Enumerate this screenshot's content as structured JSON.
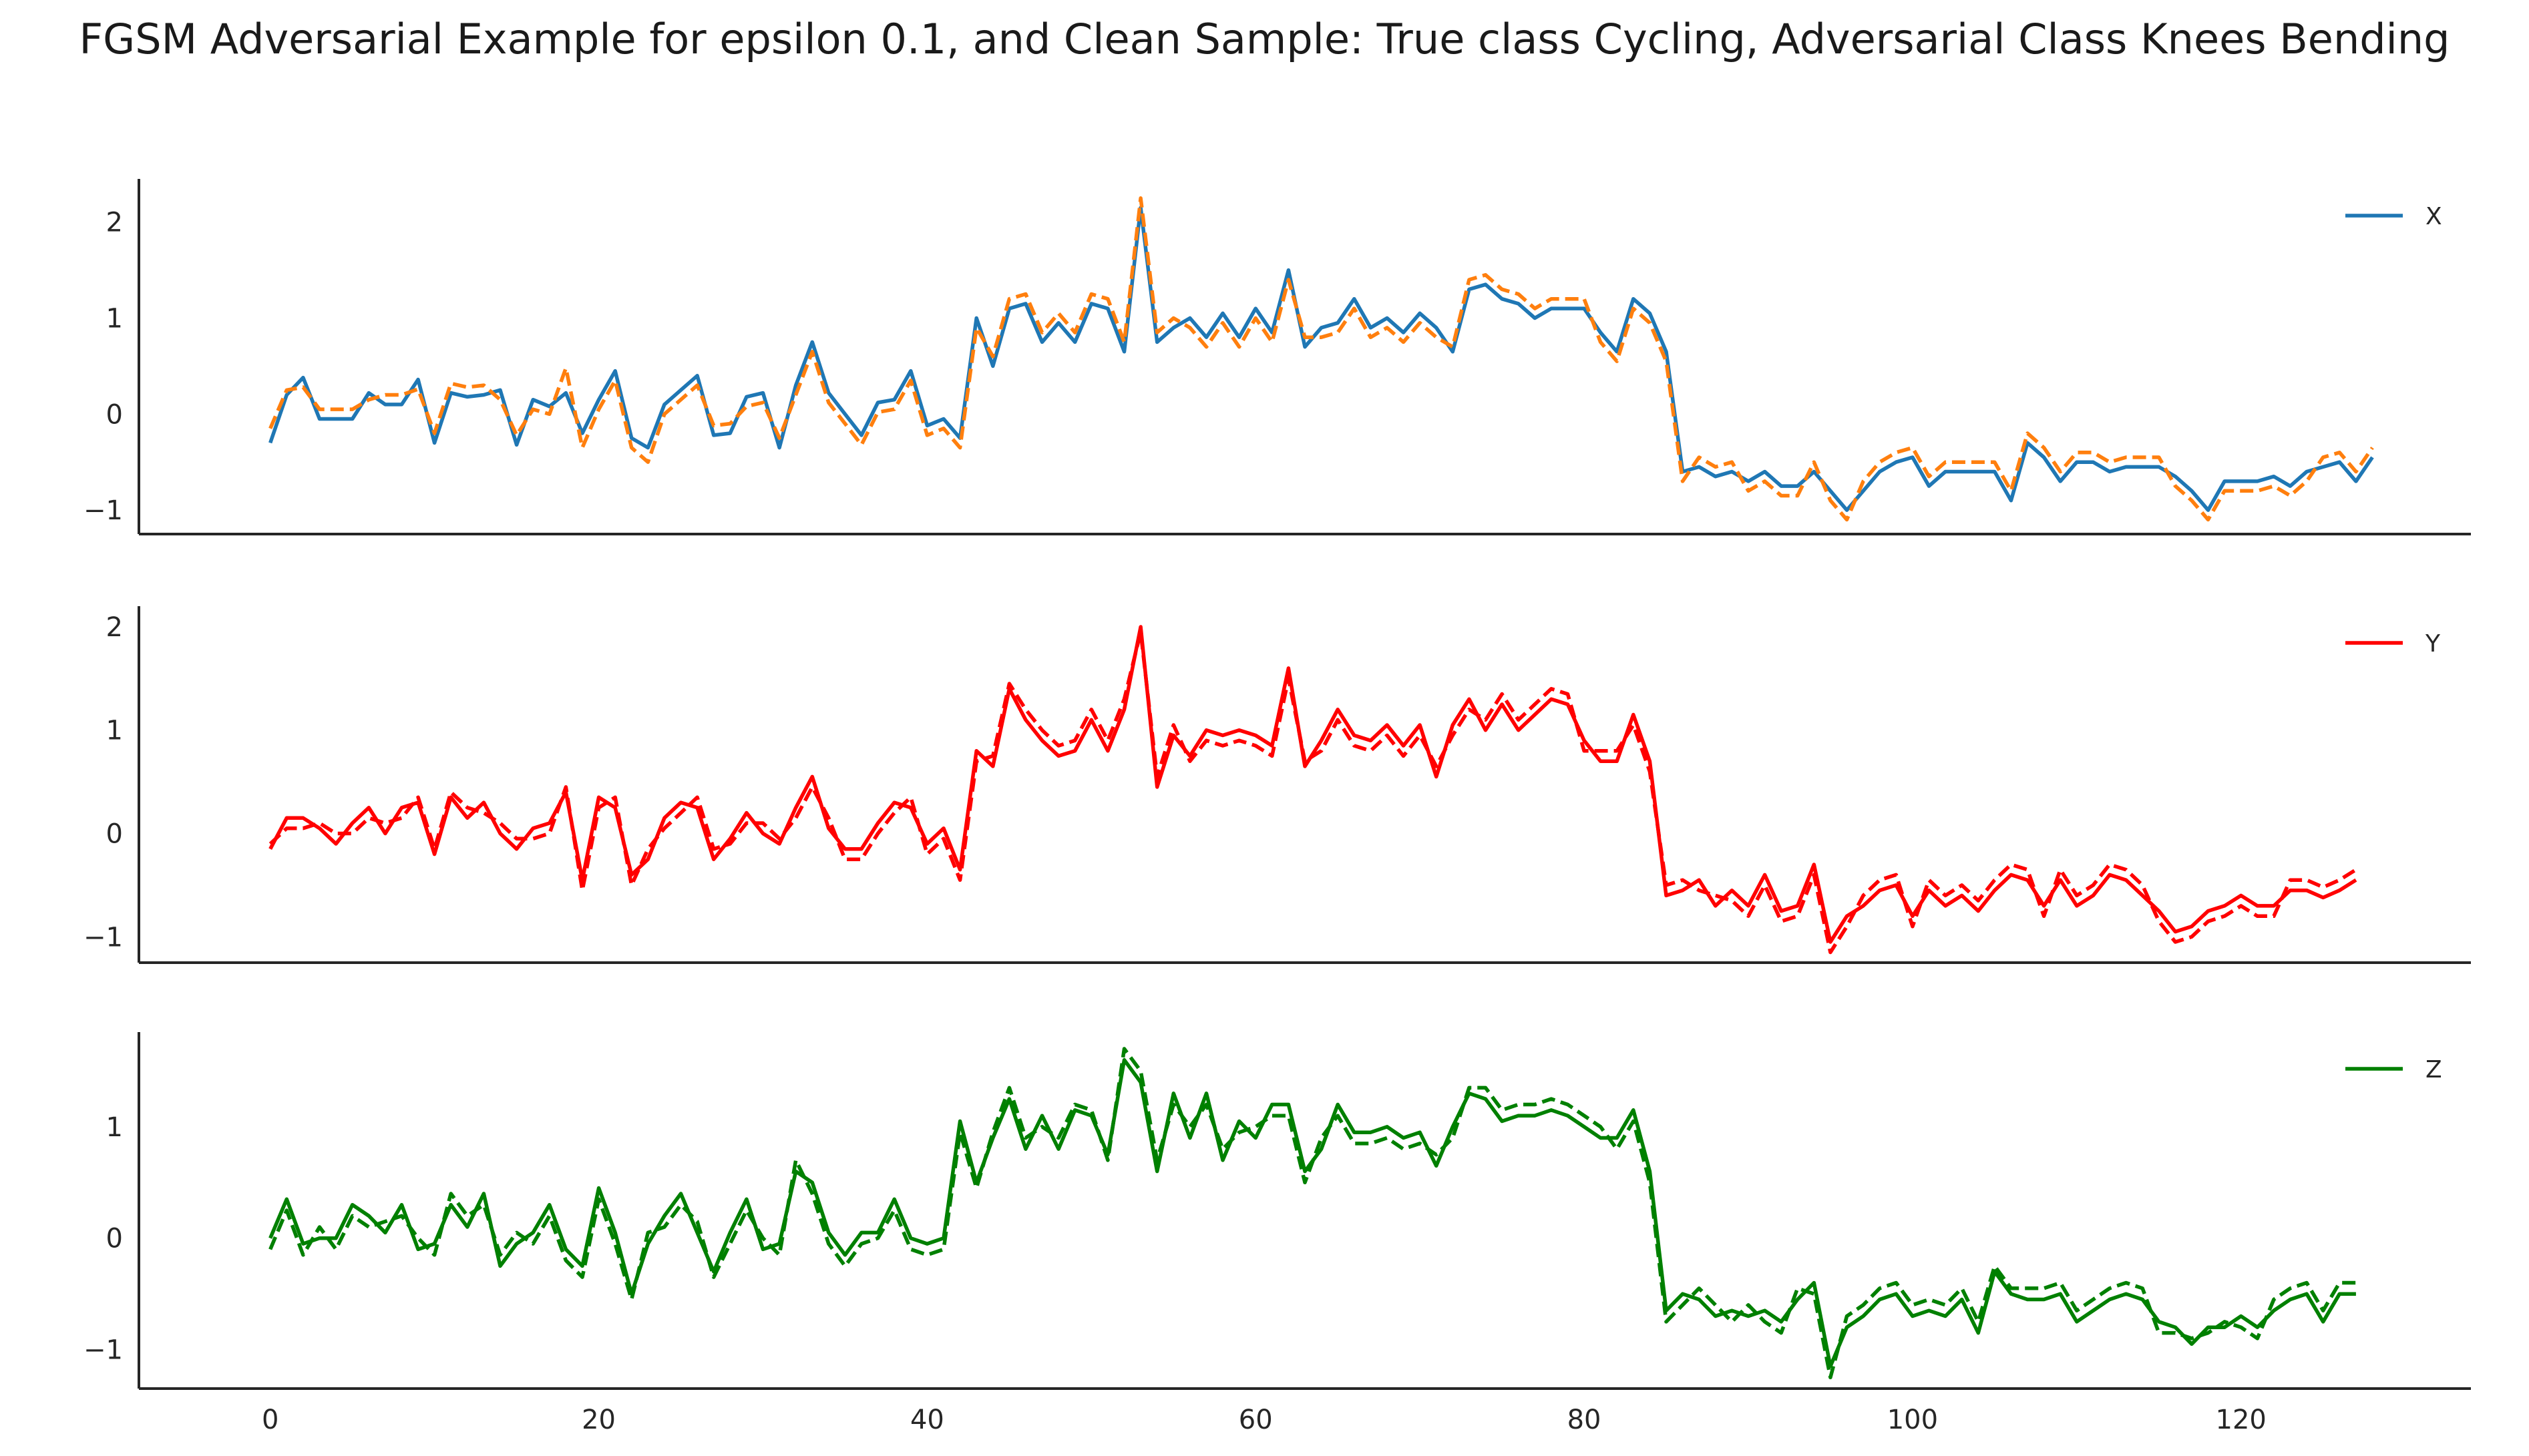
{
  "title": "FGSM Adversarial Example for epsilon 0.1, and Clean Sample: True class Cycling, Adversarial Class Knees Bending",
  "chart_data": [
    {
      "type": "line",
      "legend_location": "top-right",
      "grid": false,
      "x_range": [
        -8,
        134
      ],
      "x_ticks": [
        0,
        20,
        40,
        60,
        80,
        100,
        120
      ],
      "x_tick_labels_shown": false,
      "y_range": [
        -1.25,
        2.45
      ],
      "y_ticks": [
        -1,
        0,
        1,
        2
      ],
      "y_tick_labels": [
        "−1",
        "0",
        "1",
        "2"
      ],
      "series": [
        {
          "name": "X",
          "style": "solid",
          "color": "#1f77b4",
          "values": [
            -0.3,
            0.2,
            0.38,
            -0.05,
            -0.05,
            -0.05,
            0.22,
            0.1,
            0.1,
            0.36,
            -0.3,
            0.22,
            0.18,
            0.2,
            0.25,
            -0.32,
            0.15,
            0.08,
            0.22,
            -0.2,
            0.15,
            0.45,
            -0.25,
            -0.35,
            0.1,
            0.25,
            0.4,
            -0.22,
            -0.2,
            0.18,
            0.22,
            -0.35,
            0.3,
            0.75,
            0.22,
            0.0,
            -0.22,
            0.12,
            0.15,
            0.45,
            -0.12,
            -0.05,
            -0.25,
            1.0,
            0.5,
            1.1,
            1.15,
            0.75,
            0.95,
            0.75,
            1.15,
            1.1,
            0.65,
            2.15,
            0.75,
            0.9,
            1.0,
            0.8,
            1.05,
            0.8,
            1.1,
            0.85,
            1.5,
            0.7,
            0.9,
            0.95,
            1.2,
            0.9,
            1.0,
            0.85,
            1.05,
            0.9,
            0.65,
            1.3,
            1.35,
            1.2,
            1.15,
            1.0,
            1.1,
            1.1,
            1.1,
            0.85,
            0.65,
            1.2,
            1.05,
            0.65,
            -0.6,
            -0.55,
            -0.65,
            -0.6,
            -0.7,
            -0.6,
            -0.75,
            -0.75,
            -0.6,
            -0.8,
            -1.0,
            -0.8,
            -0.6,
            -0.5,
            -0.45,
            -0.75,
            -0.6,
            -0.6,
            -0.6,
            -0.6,
            -0.9,
            -0.3,
            -0.45,
            -0.7,
            -0.5,
            -0.5,
            -0.6,
            -0.55,
            -0.55,
            -0.55,
            -0.65,
            -0.8,
            -1.0,
            -0.7,
            -0.7,
            -0.7,
            -0.65,
            -0.75,
            -0.6,
            -0.55,
            -0.5,
            -0.7,
            -0.45
          ]
        },
        {
          "name": "",
          "style": "dashed",
          "color": "#ff7f0e",
          "values": [
            -0.15,
            0.25,
            0.28,
            0.05,
            0.05,
            0.05,
            0.15,
            0.2,
            0.2,
            0.26,
            -0.2,
            0.32,
            0.28,
            0.3,
            0.15,
            -0.22,
            0.05,
            0.0,
            0.48,
            -0.35,
            0.05,
            0.35,
            -0.35,
            -0.5,
            0.0,
            0.15,
            0.3,
            -0.12,
            -0.1,
            0.08,
            0.12,
            -0.25,
            0.2,
            0.65,
            0.12,
            -0.1,
            -0.32,
            0.02,
            0.05,
            0.35,
            -0.22,
            -0.15,
            -0.35,
            0.9,
            0.6,
            1.2,
            1.25,
            0.85,
            1.05,
            0.85,
            1.25,
            1.2,
            0.75,
            2.25,
            0.85,
            1.0,
            0.9,
            0.7,
            0.95,
            0.7,
            1.0,
            0.75,
            1.4,
            0.8,
            0.8,
            0.85,
            1.1,
            0.8,
            0.9,
            0.75,
            0.95,
            0.8,
            0.7,
            1.4,
            1.45,
            1.3,
            1.25,
            1.1,
            1.2,
            1.2,
            1.2,
            0.75,
            0.55,
            1.1,
            0.95,
            0.55,
            -0.7,
            -0.45,
            -0.55,
            -0.5,
            -0.8,
            -0.7,
            -0.85,
            -0.85,
            -0.5,
            -0.9,
            -1.1,
            -0.7,
            -0.5,
            -0.4,
            -0.35,
            -0.65,
            -0.5,
            -0.5,
            -0.5,
            -0.5,
            -0.8,
            -0.2,
            -0.35,
            -0.6,
            -0.4,
            -0.4,
            -0.5,
            -0.45,
            -0.45,
            -0.45,
            -0.75,
            -0.9,
            -1.1,
            -0.8,
            -0.8,
            -0.8,
            -0.75,
            -0.85,
            -0.7,
            -0.45,
            -0.4,
            -0.6,
            -0.35
          ]
        }
      ]
    },
    {
      "type": "line",
      "legend_location": "top-right",
      "grid": false,
      "x_range": [
        -8,
        134
      ],
      "x_ticks": [
        0,
        20,
        40,
        60,
        80,
        100,
        120
      ],
      "x_tick_labels_shown": false,
      "y_range": [
        -1.25,
        2.2
      ],
      "y_ticks": [
        -1,
        0,
        1,
        2
      ],
      "y_tick_labels": [
        "−1",
        "0",
        "1",
        "2"
      ],
      "series": [
        {
          "name": "Y",
          "style": "solid",
          "color": "#ff0000",
          "values": [
            -0.15,
            0.15,
            0.15,
            0.05,
            -0.1,
            0.1,
            0.25,
            0.0,
            0.25,
            0.3,
            -0.2,
            0.35,
            0.15,
            0.3,
            0.0,
            -0.15,
            0.05,
            0.1,
            0.4,
            -0.45,
            0.35,
            0.25,
            -0.4,
            -0.25,
            0.15,
            0.3,
            0.25,
            -0.25,
            -0.05,
            0.2,
            0.0,
            -0.1,
            0.25,
            0.55,
            0.05,
            -0.15,
            -0.15,
            0.1,
            0.3,
            0.25,
            -0.1,
            0.05,
            -0.35,
            0.8,
            0.65,
            1.4,
            1.1,
            0.9,
            0.75,
            0.8,
            1.1,
            0.8,
            1.2,
            2.0,
            0.45,
            0.95,
            0.75,
            1.0,
            0.95,
            1.0,
            0.95,
            0.85,
            1.6,
            0.65,
            0.9,
            1.2,
            0.95,
            0.9,
            1.05,
            0.85,
            1.05,
            0.55,
            1.05,
            1.3,
            1.0,
            1.25,
            1.0,
            1.15,
            1.3,
            1.25,
            0.9,
            0.7,
            0.7,
            1.15,
            0.7,
            -0.6,
            -0.55,
            -0.45,
            -0.7,
            -0.55,
            -0.7,
            -0.4,
            -0.75,
            -0.7,
            -0.3,
            -1.05,
            -0.8,
            -0.7,
            -0.55,
            -0.5,
            -0.8,
            -0.55,
            -0.7,
            -0.6,
            -0.75,
            -0.55,
            -0.4,
            -0.45,
            -0.7,
            -0.45,
            -0.7,
            -0.6,
            -0.4,
            -0.45,
            -0.6,
            -0.75,
            -0.95,
            -0.9,
            -0.75,
            -0.7,
            -0.6,
            -0.7,
            -0.7,
            -0.55,
            -0.55,
            -0.62,
            -0.55,
            -0.45
          ]
        },
        {
          "name": "",
          "style": "dashed",
          "color": "#ff0000",
          "values": [
            -0.1,
            0.05,
            0.05,
            0.1,
            0.0,
            0.0,
            0.15,
            0.1,
            0.15,
            0.35,
            -0.15,
            0.4,
            0.25,
            0.2,
            0.1,
            -0.05,
            -0.05,
            0.0,
            0.45,
            -0.55,
            0.25,
            0.35,
            -0.5,
            -0.15,
            0.05,
            0.2,
            0.35,
            -0.15,
            -0.1,
            0.1,
            0.1,
            -0.05,
            0.15,
            0.45,
            0.15,
            -0.25,
            -0.25,
            0.0,
            0.2,
            0.35,
            -0.2,
            -0.05,
            -0.45,
            0.7,
            0.75,
            1.45,
            1.2,
            1.0,
            0.85,
            0.9,
            1.2,
            0.9,
            1.3,
            1.95,
            0.55,
            1.05,
            0.7,
            0.9,
            0.85,
            0.9,
            0.85,
            0.75,
            1.5,
            0.7,
            0.8,
            1.1,
            0.85,
            0.8,
            0.95,
            0.75,
            0.95,
            0.65,
            0.95,
            1.2,
            1.1,
            1.35,
            1.1,
            1.25,
            1.4,
            1.35,
            0.8,
            0.8,
            0.8,
            1.05,
            0.6,
            -0.5,
            -0.45,
            -0.55,
            -0.6,
            -0.65,
            -0.8,
            -0.5,
            -0.85,
            -0.8,
            -0.4,
            -1.15,
            -0.9,
            -0.6,
            -0.45,
            -0.4,
            -0.9,
            -0.45,
            -0.6,
            -0.5,
            -0.65,
            -0.45,
            -0.3,
            -0.35,
            -0.8,
            -0.35,
            -0.6,
            -0.5,
            -0.3,
            -0.35,
            -0.5,
            -0.85,
            -1.05,
            -1.0,
            -0.85,
            -0.8,
            -0.7,
            -0.8,
            -0.8,
            -0.45,
            -0.45,
            -0.52,
            -0.45,
            -0.35
          ]
        }
      ]
    },
    {
      "type": "line",
      "legend_location": "top-right",
      "grid": false,
      "x_range": [
        -8,
        134
      ],
      "x_ticks": [
        0,
        20,
        40,
        60,
        80,
        100,
        120
      ],
      "x_tick_labels": [
        "0",
        "20",
        "40",
        "60",
        "80",
        "100",
        "120"
      ],
      "y_range": [
        -1.35,
        1.85
      ],
      "y_ticks": [
        -1,
        0,
        1
      ],
      "y_tick_labels": [
        "−1",
        "0",
        "1"
      ],
      "series": [
        {
          "name": "Z",
          "style": "solid",
          "color": "#008000",
          "values": [
            0.0,
            0.35,
            -0.05,
            0.0,
            0.0,
            0.3,
            0.2,
            0.05,
            0.3,
            -0.1,
            -0.05,
            0.3,
            0.1,
            0.4,
            -0.25,
            -0.05,
            0.05,
            0.3,
            -0.1,
            -0.25,
            0.45,
            0.05,
            -0.5,
            -0.05,
            0.2,
            0.4,
            0.05,
            -0.3,
            0.05,
            0.35,
            -0.1,
            -0.05,
            0.6,
            0.5,
            0.05,
            -0.15,
            0.05,
            0.05,
            0.35,
            0.0,
            -0.05,
            0.0,
            1.05,
            0.5,
            0.9,
            1.25,
            0.8,
            1.1,
            0.8,
            1.15,
            1.1,
            0.75,
            1.6,
            1.4,
            0.6,
            1.3,
            0.9,
            1.3,
            0.7,
            1.05,
            0.9,
            1.2,
            1.2,
            0.6,
            0.8,
            1.2,
            0.95,
            0.95,
            1.0,
            0.9,
            0.95,
            0.65,
            1.0,
            1.3,
            1.25,
            1.05,
            1.1,
            1.1,
            1.15,
            1.1,
            1.0,
            0.9,
            0.9,
            1.15,
            0.6,
            -0.65,
            -0.5,
            -0.55,
            -0.7,
            -0.65,
            -0.7,
            -0.65,
            -0.75,
            -0.55,
            -0.4,
            -1.15,
            -0.8,
            -0.7,
            -0.55,
            -0.5,
            -0.7,
            -0.65,
            -0.7,
            -0.55,
            -0.85,
            -0.3,
            -0.5,
            -0.55,
            -0.55,
            -0.5,
            -0.75,
            -0.65,
            -0.55,
            -0.5,
            -0.55,
            -0.75,
            -0.8,
            -0.95,
            -0.8,
            -0.8,
            -0.7,
            -0.8,
            -0.65,
            -0.55,
            -0.5,
            -0.75,
            -0.5,
            -0.5
          ]
        },
        {
          "name": "",
          "style": "dashed",
          "color": "#008000",
          "values": [
            -0.1,
            0.25,
            -0.15,
            0.1,
            -0.1,
            0.2,
            0.1,
            0.15,
            0.2,
            0.0,
            -0.15,
            0.4,
            0.2,
            0.3,
            -0.15,
            0.05,
            -0.05,
            0.2,
            -0.2,
            -0.35,
            0.35,
            -0.05,
            -0.55,
            0.05,
            0.1,
            0.3,
            0.15,
            -0.35,
            -0.05,
            0.25,
            0.0,
            -0.15,
            0.7,
            0.4,
            -0.05,
            -0.25,
            -0.05,
            0.0,
            0.25,
            -0.1,
            -0.15,
            -0.1,
            0.95,
            0.45,
            0.95,
            1.35,
            0.9,
            1.0,
            0.9,
            1.2,
            1.15,
            0.7,
            1.7,
            1.5,
            0.7,
            1.2,
            1.0,
            1.2,
            0.8,
            0.95,
            1.0,
            1.1,
            1.1,
            0.5,
            0.9,
            1.1,
            0.85,
            0.85,
            0.9,
            0.8,
            0.85,
            0.75,
            0.9,
            1.35,
            1.35,
            1.15,
            1.2,
            1.2,
            1.25,
            1.2,
            1.1,
            1.0,
            0.8,
            1.05,
            0.5,
            -0.75,
            -0.6,
            -0.45,
            -0.6,
            -0.75,
            -0.6,
            -0.75,
            -0.85,
            -0.45,
            -0.5,
            -1.25,
            -0.7,
            -0.6,
            -0.45,
            -0.4,
            -0.6,
            -0.55,
            -0.6,
            -0.45,
            -0.75,
            -0.25,
            -0.45,
            -0.45,
            -0.45,
            -0.4,
            -0.65,
            -0.55,
            -0.45,
            -0.4,
            -0.45,
            -0.85,
            -0.85,
            -0.9,
            -0.85,
            -0.75,
            -0.8,
            -0.9,
            -0.55,
            -0.45,
            -0.4,
            -0.65,
            -0.4,
            -0.4
          ]
        }
      ]
    }
  ]
}
